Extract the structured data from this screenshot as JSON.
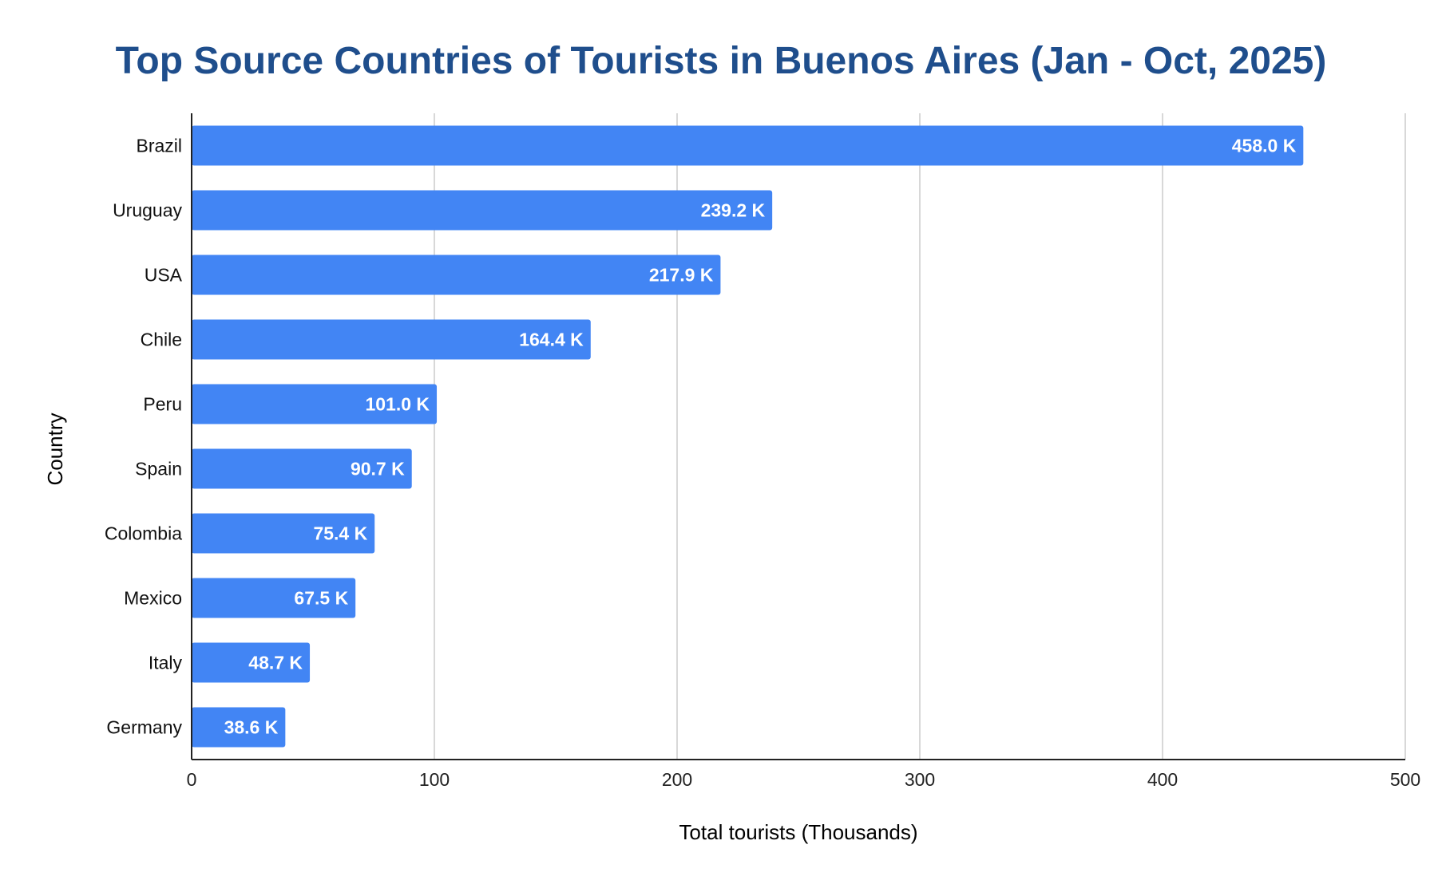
{
  "chart_data": {
    "type": "bar",
    "orientation": "horizontal",
    "title": "Top Source Countries of Tourists in Buenos Aires (Jan - Oct, 2025)",
    "xlabel": "Total tourists (Thousands)",
    "ylabel": "Country",
    "categories": [
      "Brazil",
      "Uruguay",
      "USA",
      "Chile",
      "Peru",
      "Spain",
      "Colombia",
      "Mexico",
      "Italy",
      "Germany"
    ],
    "values": [
      458.0,
      239.2,
      217.9,
      164.4,
      101.0,
      90.7,
      75.4,
      67.5,
      48.7,
      38.6
    ],
    "data_labels": [
      "458.0 K",
      "239.2 K",
      "217.9 K",
      "164.4 K",
      "101.0 K",
      "90.7 K",
      "75.4 K",
      "67.5 K",
      "48.7 K",
      "38.6 K"
    ],
    "xlim": [
      0,
      500
    ],
    "x_ticks": [
      0,
      100,
      200,
      300,
      400,
      500
    ],
    "grid": true,
    "legend": "none",
    "colors": {
      "bar": "#4285f4",
      "title": "#1f4e8c",
      "data_label": "#ffffff"
    }
  }
}
